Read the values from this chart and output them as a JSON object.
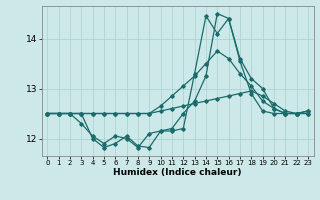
{
  "xlabel": "Humidex (Indice chaleur)",
  "background_color": "#cde8e8",
  "grid_color": "#a8d0d0",
  "line_color": "#1a6b6b",
  "xlim": [
    -0.5,
    23.5
  ],
  "ylim": [
    11.65,
    14.65
  ],
  "yticks": [
    12,
    13,
    14
  ],
  "xticks": [
    0,
    1,
    2,
    3,
    4,
    5,
    6,
    7,
    8,
    9,
    10,
    11,
    12,
    13,
    14,
    15,
    16,
    17,
    18,
    19,
    20,
    21,
    22,
    23
  ],
  "series": [
    [
      12.5,
      12.5,
      12.5,
      12.5,
      12.5,
      12.5,
      12.5,
      12.5,
      12.5,
      12.5,
      12.55,
      12.6,
      12.65,
      12.7,
      12.75,
      12.8,
      12.85,
      12.9,
      12.95,
      12.85,
      12.7,
      12.55,
      12.5,
      12.55
    ],
    [
      12.5,
      12.5,
      12.5,
      12.5,
      12.5,
      12.5,
      12.5,
      12.5,
      12.5,
      12.5,
      12.65,
      12.85,
      13.05,
      13.25,
      13.5,
      13.75,
      13.6,
      13.3,
      13.05,
      12.75,
      12.6,
      12.5,
      12.5,
      12.55
    ],
    [
      12.5,
      12.5,
      12.5,
      12.5,
      12.0,
      11.82,
      11.9,
      12.05,
      11.85,
      11.82,
      12.15,
      12.15,
      12.2,
      13.3,
      14.45,
      14.1,
      14.4,
      13.6,
      13.2,
      13.0,
      12.6,
      12.5,
      12.5,
      12.5
    ],
    [
      12.5,
      12.5,
      12.5,
      12.3,
      12.05,
      11.9,
      12.05,
      12.0,
      11.82,
      12.1,
      12.15,
      12.2,
      12.5,
      12.75,
      13.25,
      14.5,
      14.4,
      13.55,
      12.9,
      12.55,
      12.5,
      12.5,
      12.5,
      12.5
    ]
  ]
}
